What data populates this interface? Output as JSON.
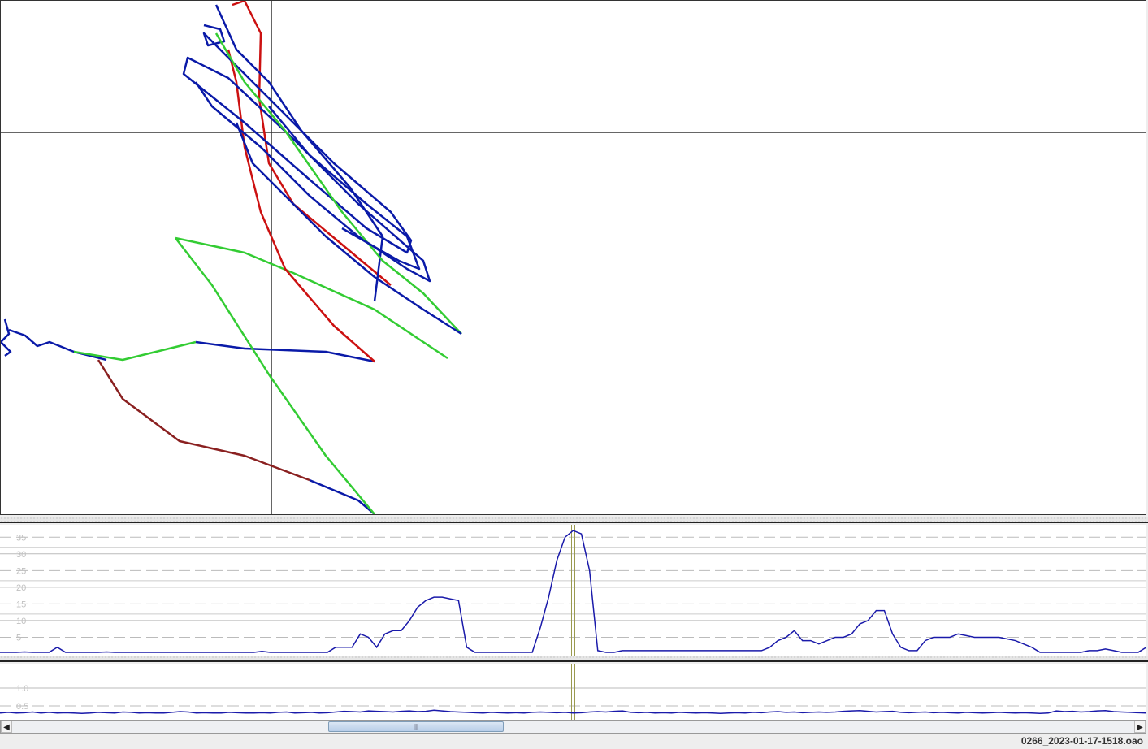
{
  "status": {
    "filename": "0266_2023-01-17-1518.oao"
  },
  "colors": {
    "track_blue": "#0a1aa8",
    "track_green": "#33cc33",
    "track_red": "#cc1111",
    "series": "#1a1aaa",
    "cursor": "#9a9a50"
  },
  "icons": {
    "scroll_left": "triangle-left",
    "scroll_right": "triangle-right",
    "thumb_grip": "grip"
  },
  "chart_data": [
    {
      "type": "line",
      "yticks": [
        "5",
        "10",
        "15",
        "20",
        "25",
        "30",
        "35"
      ],
      "ylim": [
        0,
        37.5
      ],
      "grid": true,
      "cursor_index": 70,
      "values": [
        0.5,
        0.5,
        0.5,
        0.6,
        0.5,
        0.5,
        0.5,
        2,
        0.5,
        0.5,
        0.5,
        0.5,
        0.5,
        0.6,
        0.5,
        0.5,
        0.5,
        0.5,
        0.5,
        0.5,
        0.5,
        0.5,
        0.5,
        0.5,
        0.5,
        0.5,
        0.5,
        0.5,
        0.5,
        0.5,
        0.5,
        0.5,
        0.8,
        0.5,
        0.5,
        0.5,
        0.5,
        0.5,
        0.5,
        0.5,
        0.5,
        2,
        2,
        2,
        6,
        5,
        2,
        6,
        7,
        7,
        10,
        14,
        16,
        17,
        17,
        16.5,
        16,
        2,
        0.5,
        0.5,
        0.5,
        0.5,
        0.5,
        0.5,
        0.5,
        0.5,
        8,
        17,
        28,
        35,
        37,
        36,
        25,
        1,
        0.5,
        0.5,
        1,
        1,
        1,
        1,
        1,
        1,
        1,
        1,
        1,
        1,
        1,
        1,
        1,
        1,
        1,
        1,
        1,
        1,
        2,
        4,
        5,
        7,
        4,
        4,
        3,
        4,
        5,
        5,
        6,
        9,
        10,
        13,
        13,
        6,
        2,
        1,
        1,
        4,
        5,
        5,
        5,
        6,
        5.5,
        5,
        5,
        5,
        5,
        4.5,
        4,
        3,
        2,
        0.5,
        0.5,
        0.5,
        0.5,
        0.5,
        0.5,
        1,
        1,
        1.5,
        1,
        0.5,
        0.5,
        0.5,
        2
      ]
    },
    {
      "type": "line",
      "yticks": [
        "0.5",
        "1.0"
      ],
      "ylim": [
        0,
        1.5
      ],
      "grid": true,
      "cursor_index": 70,
      "values": [
        0.3,
        0.32,
        0.3,
        0.31,
        0.33,
        0.3,
        0.32,
        0.3,
        0.31,
        0.3,
        0.29,
        0.3,
        0.32,
        0.31,
        0.3,
        0.33,
        0.32,
        0.3,
        0.31,
        0.3,
        0.3,
        0.32,
        0.34,
        0.33,
        0.3,
        0.31,
        0.3,
        0.3,
        0.32,
        0.31,
        0.3,
        0.3,
        0.31,
        0.3,
        0.32,
        0.33,
        0.3,
        0.31,
        0.32,
        0.3,
        0.31,
        0.33,
        0.35,
        0.34,
        0.33,
        0.36,
        0.35,
        0.34,
        0.33,
        0.35,
        0.36,
        0.34,
        0.35,
        0.38,
        0.36,
        0.34,
        0.33,
        0.32,
        0.31,
        0.3,
        0.32,
        0.31,
        0.3,
        0.31,
        0.3,
        0.32,
        0.33,
        0.32,
        0.31,
        0.32,
        0.3,
        0.31,
        0.33,
        0.34,
        0.33,
        0.35,
        0.36,
        0.32,
        0.31,
        0.32,
        0.3,
        0.31,
        0.3,
        0.32,
        0.31,
        0.3,
        0.31,
        0.3,
        0.29,
        0.3,
        0.31,
        0.3,
        0.32,
        0.31,
        0.33,
        0.34,
        0.32,
        0.33,
        0.31,
        0.32,
        0.33,
        0.32,
        0.33,
        0.35,
        0.36,
        0.37,
        0.35,
        0.33,
        0.34,
        0.35,
        0.32,
        0.31,
        0.32,
        0.33,
        0.31,
        0.32,
        0.31,
        0.3,
        0.32,
        0.31,
        0.3,
        0.31,
        0.32,
        0.31,
        0.3,
        0.31,
        0.3,
        0.29,
        0.3,
        0.36,
        0.34,
        0.35,
        0.33,
        0.34,
        0.36,
        0.37,
        0.34,
        0.33,
        0.32,
        0.31,
        0.3
      ]
    }
  ]
}
